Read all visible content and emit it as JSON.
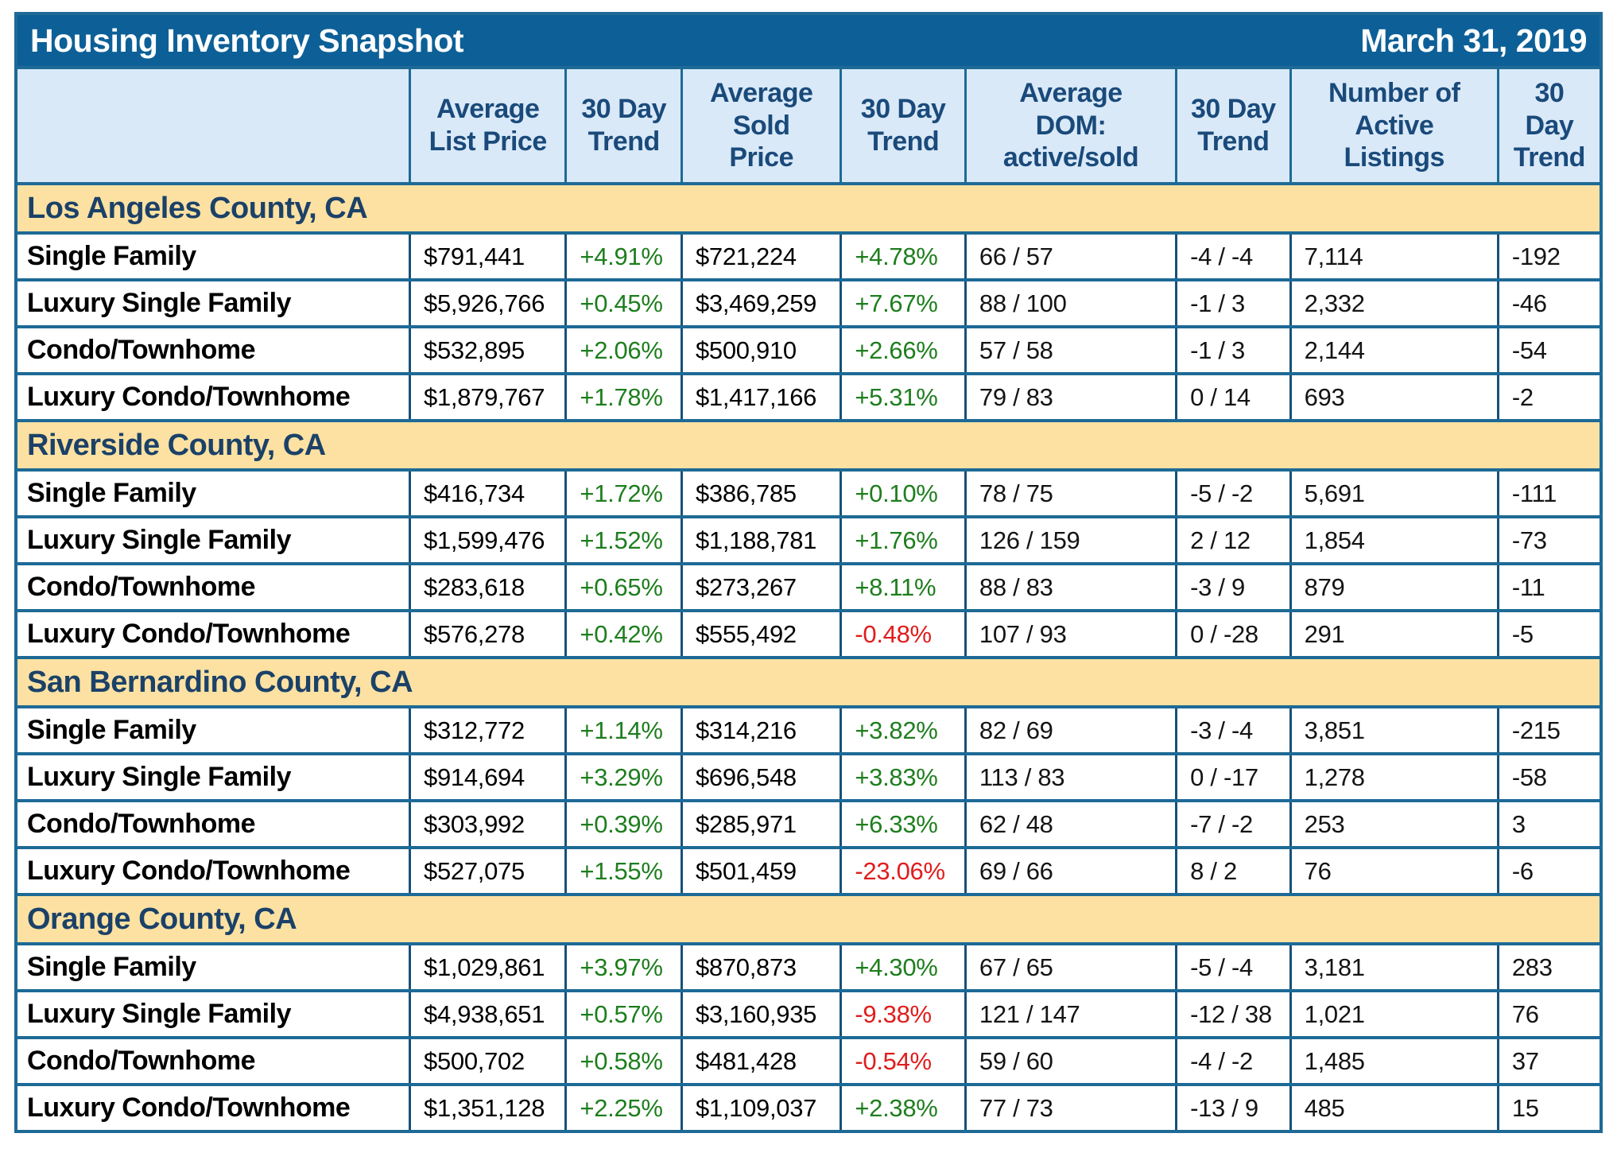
{
  "chart_data": {
    "type": "table",
    "title": "Housing Inventory Snapshot",
    "date": "March 31, 2019",
    "columns": [
      "",
      "Average\nList Price",
      "30 Day\nTrend",
      "Average\nSold\nPrice",
      "30 Day\nTrend",
      "Average\nDOM:\nactive/sold",
      "30 Day\nTrend",
      "Number of\nActive\nListings",
      "30\nDay\nTrend"
    ],
    "column_keys": [
      "row-label",
      "avg-list-price",
      "list-trend",
      "avg-sold-price",
      "sold-trend",
      "avg-dom",
      "dom-trend",
      "active-listings",
      "listings-trend"
    ],
    "sections": [
      {
        "name": "Los Angeles County, CA",
        "rows": [
          {
            "label": "Single Family",
            "cells": [
              "$791,441",
              "+4.91%",
              "$721,224",
              "+4.78%",
              "66 / 57",
              "-4 / -4",
              "7,114",
              "-192"
            ]
          },
          {
            "label": "Luxury Single Family",
            "cells": [
              "$5,926,766",
              "+0.45%",
              "$3,469,259",
              "+7.67%",
              "88 / 100",
              "-1 / 3",
              "2,332",
              "-46"
            ]
          },
          {
            "label": "Condo/Townhome",
            "cells": [
              "$532,895",
              "+2.06%",
              "$500,910",
              "+2.66%",
              "57 / 58",
              "-1 / 3",
              "2,144",
              "-54"
            ]
          },
          {
            "label": "Luxury Condo/Townhome",
            "cells": [
              "$1,879,767",
              "+1.78%",
              "$1,417,166",
              "+5.31%",
              "79 / 83",
              "0 / 14",
              "693",
              "-2"
            ]
          }
        ]
      },
      {
        "name": "Riverside County, CA",
        "rows": [
          {
            "label": "Single Family",
            "cells": [
              "$416,734",
              "+1.72%",
              "$386,785",
              "+0.10%",
              "78 / 75",
              "-5 / -2",
              "5,691",
              "-111"
            ]
          },
          {
            "label": "Luxury Single Family",
            "cells": [
              "$1,599,476",
              "+1.52%",
              "$1,188,781",
              "+1.76%",
              "126 / 159",
              "2 / 12",
              "1,854",
              "-73"
            ]
          },
          {
            "label": "Condo/Townhome",
            "cells": [
              "$283,618",
              "+0.65%",
              "$273,267",
              "+8.11%",
              "88 / 83",
              "-3 / 9",
              "879",
              "-11"
            ]
          },
          {
            "label": "Luxury Condo/Townhome",
            "cells": [
              "$576,278",
              "+0.42%",
              "$555,492",
              "-0.48%",
              "107 / 93",
              "0 / -28",
              "291",
              "-5"
            ]
          }
        ]
      },
      {
        "name": "San Bernardino County, CA",
        "rows": [
          {
            "label": "Single Family",
            "cells": [
              "$312,772",
              "+1.14%",
              "$314,216",
              "+3.82%",
              "82 / 69",
              "-3 / -4",
              "3,851",
              "-215"
            ]
          },
          {
            "label": "Luxury Single Family",
            "cells": [
              "$914,694",
              "+3.29%",
              "$696,548",
              "+3.83%",
              "113 / 83",
              "0 / -17",
              "1,278",
              "-58"
            ]
          },
          {
            "label": "Condo/Townhome",
            "cells": [
              "$303,992",
              "+0.39%",
              "$285,971",
              "+6.33%",
              "62 / 48",
              "-7 / -2",
              "253",
              "3"
            ]
          },
          {
            "label": "Luxury Condo/Townhome",
            "cells": [
              "$527,075",
              "+1.55%",
              "$501,459",
              "-23.06%",
              "69 / 66",
              "8 / 2",
              "76",
              "-6"
            ]
          }
        ]
      },
      {
        "name": "Orange County, CA",
        "rows": [
          {
            "label": "Single Family",
            "cells": [
              "$1,029,861",
              "+3.97%",
              "$870,873",
              "+4.30%",
              "67 / 65",
              "-5 / -4",
              "3,181",
              "283"
            ]
          },
          {
            "label": "Luxury Single Family",
            "cells": [
              "$4,938,651",
              "+0.57%",
              "$3,160,935",
              "-9.38%",
              "121 / 147",
              "-12 / 38",
              "1,021",
              "76"
            ]
          },
          {
            "label": "Condo/Townhome",
            "cells": [
              "$500,702",
              "+0.58%",
              "$481,428",
              "-0.54%",
              "59 / 60",
              "-4 / -2",
              "1,485",
              "37"
            ]
          },
          {
            "label": "Luxury Condo/Townhome",
            "cells": [
              "$1,351,128",
              "+2.25%",
              "$1,109,037",
              "+2.38%",
              "77 / 73",
              "-13 / 9",
              "485",
              "15"
            ]
          }
        ]
      }
    ],
    "colors": {
      "title_bar_bg": "#0D6097",
      "title_text": "#FFFFFF",
      "header_bg": "#D9E9F8",
      "header_text": "#1A4A7A",
      "section_bg": "#FCE1A2",
      "section_text": "#1B4168",
      "positive_trend": "#1E7E1E",
      "negative_trend": "#E01D1D",
      "border": "#1D6A96"
    }
  }
}
